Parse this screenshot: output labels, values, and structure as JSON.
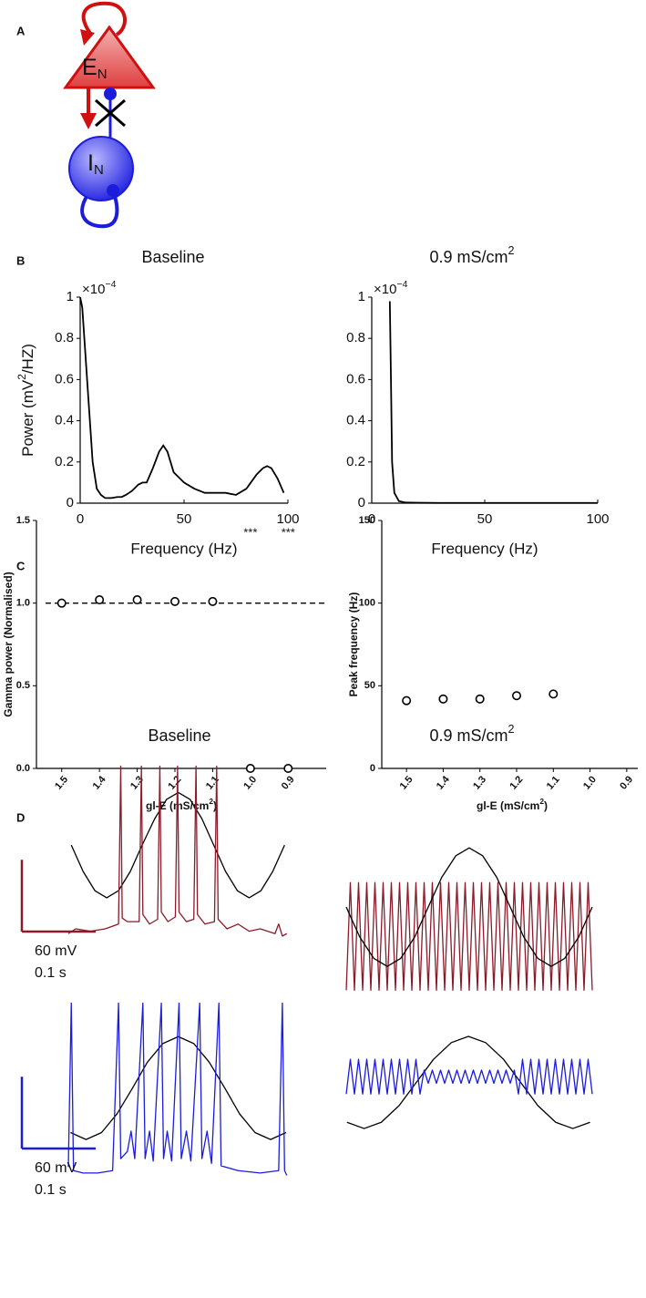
{
  "panel_labels": [
    "A",
    "B",
    "C",
    "D"
  ],
  "diagram": {
    "excitatory": {
      "label": "E",
      "subscript": "N"
    },
    "inhibitory": {
      "label": "I",
      "subscript": "N"
    }
  },
  "chart_data": [
    {
      "type": "line",
      "title": "Baseline",
      "scale_factor": [
        "×10",
        "−4"
      ],
      "ylabel": [
        "Power (mV",
        "2",
        "/HZ)"
      ],
      "xlabel": "Frequency (Hz)",
      "xlim": [
        0,
        100
      ],
      "xticks": [
        0,
        50,
        100
      ],
      "ylim": [
        0,
        1
      ],
      "yticks": [
        0,
        0.2,
        0.4,
        0.6,
        0.8,
        1
      ],
      "color": "#000000",
      "x": [
        0,
        1,
        2,
        4,
        6,
        8,
        10,
        12,
        15,
        18,
        20,
        22,
        25,
        28,
        30,
        32,
        35,
        38,
        40,
        42,
        45,
        48,
        50,
        55,
        60,
        65,
        70,
        75,
        80,
        85,
        88,
        90,
        92,
        95,
        98
      ],
      "values": [
        1,
        0.95,
        0.8,
        0.5,
        0.2,
        0.07,
        0.04,
        0.025,
        0.025,
        0.03,
        0.03,
        0.04,
        0.06,
        0.09,
        0.1,
        0.1,
        0.17,
        0.25,
        0.28,
        0.25,
        0.15,
        0.12,
        0.1,
        0.07,
        0.05,
        0.05,
        0.05,
        0.04,
        0.07,
        0.14,
        0.17,
        0.18,
        0.17,
        0.12,
        0.05
      ]
    },
    {
      "type": "line",
      "title": [
        "0.9 mS/cm",
        "2"
      ],
      "scale_factor": [
        "×10",
        "−4"
      ],
      "xlabel": "Frequency (Hz)",
      "xlim": [
        0,
        100
      ],
      "xticks": [
        0,
        50,
        100
      ],
      "ylim": [
        0,
        1
      ],
      "yticks": [
        0,
        0.2,
        0.4,
        0.6,
        0.8,
        1
      ],
      "color": "#000000",
      "x": [
        8,
        8.5,
        9,
        10,
        11,
        12,
        15,
        20,
        30,
        50,
        70,
        100
      ],
      "values": [
        0.98,
        0.6,
        0.2,
        0.05,
        0.03,
        0.01,
        0.003,
        0.002,
        0.001,
        0.001,
        0.001,
        0.001
      ]
    },
    {
      "type": "dot",
      "ylabel": "Gamma power (Normalised)",
      "xlabel": [
        "gl-E (mS/cm",
        "2",
        ")"
      ],
      "categories": [
        "1.5",
        "1.4",
        "1.3",
        "1.2",
        "1.1",
        "1.0",
        "0.9"
      ],
      "values": [
        1,
        1.02,
        1.02,
        1.01,
        1.01,
        0,
        0
      ],
      "significance": [
        null,
        null,
        null,
        null,
        null,
        "***",
        "***"
      ],
      "reference_line": 1,
      "color": "#000000",
      "ylim": [
        0,
        1.5
      ],
      "yticks": [
        {
          "value": 0,
          "label": "0.0"
        },
        {
          "value": 0.5,
          "label": "0.5"
        },
        {
          "value": 1,
          "label": "1.0"
        },
        {
          "value": 1.5,
          "label": "1.5"
        }
      ]
    },
    {
      "type": "dot",
      "ylabel": "Peak frequency (Hz)",
      "xlabel": [
        "gl-E (mS/cm",
        "2",
        ")"
      ],
      "categories": [
        "1.5",
        "1.4",
        "1.3",
        "1.2",
        "1.1",
        "1.0",
        "0.9"
      ],
      "values": [
        41,
        42,
        42,
        44,
        45,
        null,
        null
      ],
      "color": "#000000",
      "ylim": [
        0,
        150
      ],
      "yticks": [
        0,
        50,
        100,
        150
      ]
    },
    {
      "type": "trace",
      "title": "Baseline",
      "xlim": [
        0,
        0.3
      ],
      "ylim": [
        -100,
        60
      ],
      "series": [
        {
          "color": "#000000",
          "x": [
            0.004,
            0.02,
            0.036,
            0.052,
            0.068,
            0.084,
            0.1,
            0.117,
            0.133,
            0.149,
            0.165,
            0.181,
            0.197,
            0.213,
            0.229,
            0.245,
            0.261,
            0.277,
            0.293
          ],
          "values": [
            -14,
            -36,
            -52.1,
            -58,
            -52.1,
            -36,
            -14,
            8,
            24.1,
            30,
            24.1,
            8,
            -14,
            -36,
            -52.1,
            -58,
            -52.1,
            -36,
            -14
          ]
        },
        {
          "color": "#8b1a2a",
          "x": [
            0,
            0.01,
            0.03,
            0.05,
            0.068,
            0.071,
            0.073,
            0.08,
            0.096,
            0.099,
            0.101,
            0.11,
            0.121,
            0.124,
            0.126,
            0.135,
            0.145,
            0.148,
            0.15,
            0.16,
            0.17,
            0.173,
            0.175,
            0.185,
            0.198,
            0.201,
            0.203,
            0.215,
            0.23,
            0.245,
            0.26,
            0.28,
            0.285,
            0.29,
            0.296
          ],
          "values": [
            -88,
            -84,
            -86,
            -84,
            -80,
            52,
            -75,
            -78,
            -78,
            52,
            -72,
            -80,
            -76,
            52,
            -70,
            -78,
            -74,
            52,
            -70,
            -78,
            -76,
            52,
            -72,
            -80,
            -78,
            52,
            -76,
            -84,
            -80,
            -86,
            -84,
            -88,
            -80,
            -90,
            -88
          ]
        }
      ],
      "scale_bar": {
        "color": "#8b1a2a",
        "voltage": {
          "value": 60,
          "label": "60 mV"
        },
        "time": {
          "value": 0.1,
          "label": "0.1 s"
        }
      }
    },
    {
      "type": "trace",
      "title": [
        "0.9 mS/cm",
        "2"
      ],
      "xlim": [
        0,
        0.33
      ],
      "ylim": [
        -100,
        60
      ],
      "series": [
        {
          "color": "#8b1a2a",
          "x": [
            0,
            0.0055,
            0.011,
            0.0165,
            0.022,
            0.0275,
            0.033,
            0.0385,
            0.044,
            0.0495,
            0.055,
            0.0605,
            0.066,
            0.0715,
            0.077,
            0.0825,
            0.088,
            0.0935,
            0.099,
            0.1045,
            0.11,
            0.1155,
            0.121,
            0.1265,
            0.132,
            0.1375,
            0.143,
            0.1485,
            0.154,
            0.1595,
            0.165,
            0.1705,
            0.176,
            0.1815,
            0.187,
            0.1925,
            0.198,
            0.2035,
            0.209,
            0.2145,
            0.22,
            0.2255,
            0.231,
            0.2365,
            0.242,
            0.2475,
            0.253,
            0.2585,
            0.264,
            0.2695,
            0.275,
            0.2805,
            0.286,
            0.2915,
            0.297,
            0.3025,
            0.308,
            0.3135,
            0.319,
            0.3245,
            0.33
          ],
          "values": [
            -82,
            8,
            -82,
            8,
            -82,
            8,
            -82,
            8,
            -82,
            8,
            -82,
            8,
            -82,
            8,
            -82,
            8,
            -82,
            8,
            -82,
            8,
            -82,
            8,
            -82,
            8,
            -82,
            8,
            -82,
            8,
            -82,
            8,
            -82,
            8,
            -82,
            8,
            -82,
            8,
            -82,
            8,
            -82,
            8,
            -82,
            8,
            -82,
            8,
            -82,
            8,
            -82,
            8,
            -82,
            8,
            -82,
            8,
            -82,
            8,
            -82,
            8,
            -82,
            8,
            -82,
            8,
            -82
          ]
        },
        {
          "color": "#000000",
          "x": [
            0.0,
            0.018,
            0.037,
            0.055,
            0.073,
            0.092,
            0.11,
            0.128,
            0.147,
            0.165,
            0.183,
            0.202,
            0.22,
            0.238,
            0.257,
            0.275,
            0.293,
            0.312,
            0.33
          ],
          "values": [
            -12.5,
            -37.3,
            -55.4,
            -62,
            -55.4,
            -37.3,
            -12.5,
            12.3,
            30.4,
            37,
            30.4,
            12.3,
            -12.5,
            -37.3,
            -55.4,
            -62,
            -55.4,
            -37.3,
            -12.5
          ]
        }
      ]
    },
    {
      "type": "trace",
      "xlim": [
        0,
        0.3
      ],
      "ylim": [
        -100,
        60
      ],
      "series": [
        {
          "color": "#000000",
          "x": [
            0.003,
            0.024,
            0.045,
            0.066,
            0.087,
            0.107,
            0.128,
            0.149,
            0.17,
            0.191,
            0.212,
            0.232,
            0.253,
            0.274,
            0.295
          ],
          "values": [
            -56.2,
            -62,
            -56.2,
            -40.5,
            -19,
            2.5,
            18.2,
            24,
            18.2,
            2.5,
            -19,
            -40.5,
            -56.2,
            -62,
            -56.2
          ]
        },
        {
          "color": "#1c1cdc",
          "x": [
            0,
            0.004,
            0.007,
            0.02,
            0.04,
            0.06,
            0.068,
            0.071,
            0.08,
            0.085,
            0.09,
            0.101,
            0.104,
            0.11,
            0.115,
            0.126,
            0.129,
            0.134,
            0.14,
            0.15,
            0.153,
            0.16,
            0.166,
            0.178,
            0.181,
            0.188,
            0.194,
            0.204,
            0.207,
            0.23,
            0.26,
            0.285,
            0.29,
            0.293,
            0.296
          ],
          "values": [
            -85,
            52,
            -88,
            -90,
            -90,
            -88,
            52,
            -78,
            -72,
            -55,
            -78,
            52,
            -78,
            -55,
            -80,
            52,
            -78,
            -55,
            -80,
            52,
            -78,
            -55,
            -80,
            52,
            -78,
            -55,
            -82,
            52,
            -84,
            -88,
            -90,
            -88,
            52,
            -88,
            -92
          ]
        }
      ],
      "scale_bar": {
        "color": "#1c1cdc",
        "voltage": {
          "value": 60,
          "label": "60 mV"
        },
        "time": {
          "value": 0.1,
          "label": "0.1 s"
        }
      }
    },
    {
      "type": "trace",
      "xlim": [
        0,
        0.33
      ],
      "ylim": [
        -100,
        60
      ],
      "series": [
        {
          "color": "#000000",
          "x": [
            0.001,
            0.024,
            0.047,
            0.071,
            0.094,
            0.117,
            0.141,
            0.164,
            0.187,
            0.211,
            0.234,
            0.257,
            0.281,
            0.304,
            0.327
          ],
          "values": [
            -47.6,
            -52.8,
            -47.6,
            -33.6,
            -14.3,
            5,
            19,
            24.2,
            19,
            5,
            -14.3,
            -33.6,
            -47.6,
            -52.8,
            -47.6
          ]
        },
        {
          "color": "#1c1cdc",
          "x": [
            0,
            0.0055,
            0.011,
            0.0165,
            0.022,
            0.0275,
            0.033,
            0.0385,
            0.044,
            0.0495,
            0.055,
            0.0605,
            0.066,
            0.0715,
            0.077,
            0.0825,
            0.088,
            0.0935,
            0.099,
            0.1045,
            0.11,
            0.1155,
            0.121,
            0.1265,
            0.132,
            0.1375,
            0.143,
            0.1485,
            0.154,
            0.1595,
            0.165,
            0.1705,
            0.176,
            0.1815,
            0.187,
            0.1925,
            0.198,
            0.2035,
            0.209,
            0.2145,
            0.22,
            0.2255,
            0.231,
            0.2365,
            0.242,
            0.2475,
            0.253,
            0.2585,
            0.264,
            0.2695,
            0.275,
            0.2805,
            0.286,
            0.2915,
            0.297,
            0.3025,
            0.308,
            0.3135,
            0.319,
            0.3245,
            0.33
          ],
          "values": [
            -24,
            5,
            -24,
            5,
            -24,
            5,
            -24,
            5,
            -24,
            5,
            -24,
            5,
            -24,
            5,
            -24,
            5,
            -24,
            5,
            -24,
            -4,
            -15,
            -4,
            -15,
            -4,
            -15,
            -4,
            -15,
            -4,
            -15,
            -4,
            -15,
            -4,
            -15,
            -4,
            -15,
            -4,
            -15,
            -4,
            -15,
            -4,
            -15,
            -4,
            -24,
            5,
            -24,
            5,
            -24,
            5,
            -24,
            5,
            -24,
            5,
            -24,
            5,
            -24,
            5,
            -24,
            5,
            -24,
            5,
            -24
          ]
        }
      ]
    }
  ]
}
